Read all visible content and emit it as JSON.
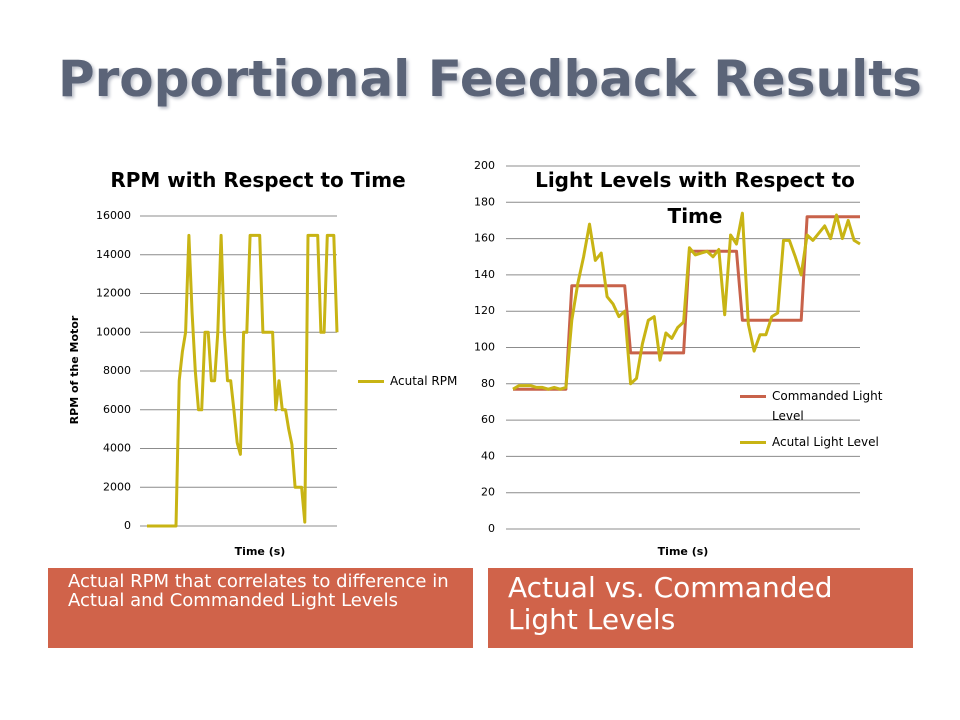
{
  "title": "Proportional Feedback Results",
  "chart_data": [
    {
      "type": "line",
      "title": "RPM  with Respect to Time",
      "x_label": "Time (s)",
      "y_label": "RPM of the Motor",
      "ylim": [
        0,
        16000
      ],
      "yticks": [
        0,
        2000,
        4000,
        6000,
        8000,
        10000,
        12000,
        14000,
        16000
      ],
      "grid": true,
      "legend": "right",
      "series": [
        {
          "name": "Acutal RPM",
          "color": "#c8b414",
          "values": [
            0,
            0,
            0,
            0,
            0,
            0,
            0,
            0,
            0,
            0,
            7500,
            9000,
            10000,
            15000,
            11000,
            8000,
            6000,
            6000,
            10000,
            10000,
            7500,
            7500,
            10000,
            15000,
            10000,
            7500,
            7500,
            6000,
            4300,
            3700,
            10000,
            10000,
            15000,
            15000,
            15000,
            15000,
            10000,
            10000,
            10000,
            10000,
            6000,
            7500,
            6000,
            6000,
            5000,
            4200,
            2000,
            2000,
            2000,
            200,
            15000,
            15000,
            15000,
            15000,
            10000,
            10000,
            15000,
            15000,
            15000,
            10000
          ]
        }
      ]
    },
    {
      "type": "line",
      "title": "Light Levels with Respect to Time",
      "x_label": "Time (s)",
      "ylim": [
        0,
        200
      ],
      "yticks": [
        0,
        20,
        40,
        60,
        80,
        100,
        120,
        140,
        160,
        180,
        200
      ],
      "grid": true,
      "legend": "lower-right",
      "series": [
        {
          "name": "Commanded Light Level",
          "color": "#c8624a",
          "values": [
            77,
            77,
            77,
            77,
            77,
            77,
            77,
            77,
            77,
            77,
            134,
            134,
            134,
            134,
            134,
            134,
            134,
            134,
            134,
            134,
            97,
            97,
            97,
            97,
            97,
            97,
            97,
            97,
            97,
            97,
            153,
            153,
            153,
            153,
            153,
            153,
            153,
            153,
            153,
            115,
            115,
            115,
            115,
            115,
            115,
            115,
            115,
            115,
            115,
            115,
            172,
            172,
            172,
            172,
            172,
            172,
            172,
            172,
            172,
            172
          ]
        },
        {
          "name": "Acutal Light Level",
          "color": "#c8b414",
          "values": [
            77,
            79,
            79,
            79,
            78,
            78,
            77,
            78,
            77,
            78,
            115,
            135,
            150,
            168,
            148,
            152,
            128,
            124,
            117,
            120,
            80,
            83,
            102,
            115,
            117,
            93,
            108,
            105,
            111,
            114,
            155,
            151,
            152,
            153,
            150,
            154,
            118,
            162,
            157,
            174,
            113,
            98,
            107,
            107,
            117,
            119,
            159,
            159,
            150,
            140,
            162,
            159,
            163,
            167,
            160,
            173,
            160,
            170,
            159,
            157
          ]
        }
      ]
    }
  ],
  "captions": [
    "Actual RPM that correlates to difference in Actual and Commanded Light Levels",
    "Actual vs. Commanded Light Levels"
  ]
}
